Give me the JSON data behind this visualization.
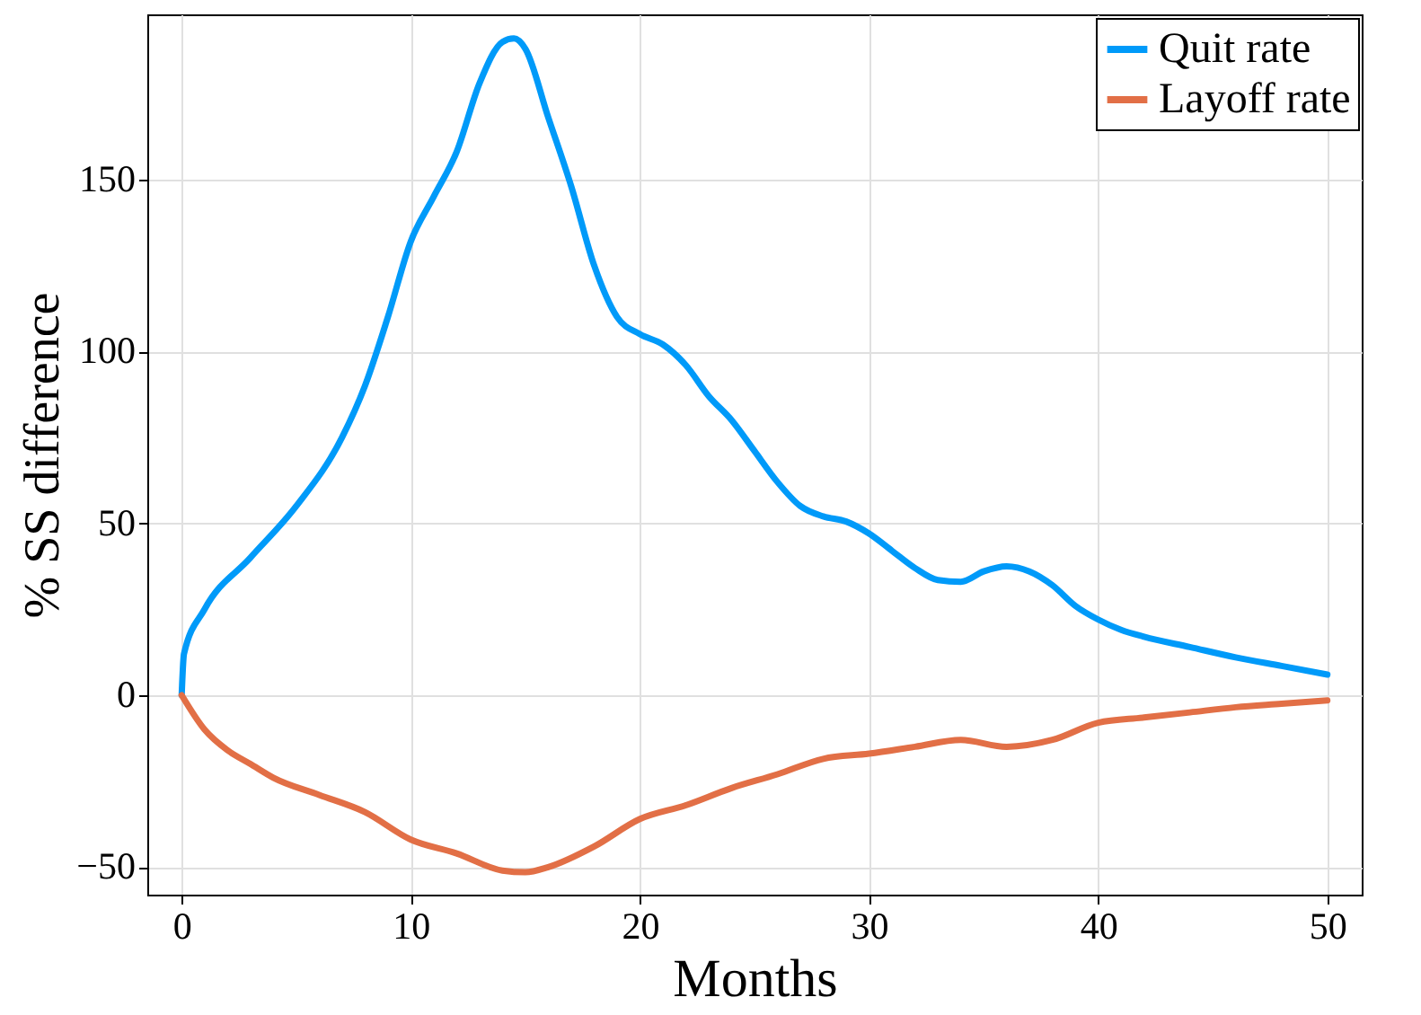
{
  "chart_data": {
    "type": "line",
    "xlabel": "Months",
    "ylabel": "% SS difference",
    "xlim": [
      -1.5,
      51.5
    ],
    "ylim": [
      -58,
      198
    ],
    "xticks": [
      0,
      10,
      20,
      30,
      40,
      50
    ],
    "yticks": [
      -50,
      0,
      50,
      100,
      150
    ],
    "grid": true,
    "legend": "top right",
    "line_style": "solid",
    "marker": "none",
    "series": [
      {
        "name": "Quit rate",
        "color": "#009af9",
        "x": [
          0,
          0.1,
          1,
          3,
          5,
          7,
          8,
          9,
          10,
          11,
          12,
          13,
          14,
          14.5,
          15,
          16,
          17,
          18,
          19,
          20,
          21,
          22,
          23,
          24,
          25,
          26,
          27,
          28,
          29,
          30,
          31,
          32,
          33,
          34,
          35,
          36,
          37,
          38,
          39,
          40,
          41,
          42,
          44,
          46,
          48,
          50
        ],
        "values": [
          0,
          12,
          25,
          40,
          55,
          75,
          90,
          110,
          132,
          145,
          158,
          178,
          190,
          191,
          188,
          168,
          148,
          125,
          110,
          105,
          102,
          96,
          87,
          80,
          71,
          62,
          55,
          52,
          50.5,
          47,
          42,
          37,
          33.5,
          33,
          36,
          37.5,
          36,
          32,
          26,
          22,
          19,
          17,
          14,
          11,
          8.5,
          6
        ]
      },
      {
        "name": "Layoff rate",
        "color": "#e26f46",
        "x": [
          0,
          1,
          2,
          3,
          4,
          6,
          8,
          10,
          12,
          14,
          15,
          16,
          18,
          20,
          22,
          24,
          26,
          28,
          30,
          32,
          34,
          36,
          38,
          40,
          42,
          44,
          46,
          48,
          50
        ],
        "values": [
          0,
          -10,
          -16,
          -20,
          -24,
          -29,
          -34,
          -42,
          -46,
          -51,
          -51.5,
          -50,
          -44,
          -36,
          -32,
          -27,
          -23,
          -18.5,
          -17,
          -15,
          -13,
          -15,
          -13,
          -8,
          -6.5,
          -5,
          -3.5,
          -2.5,
          -1.5
        ]
      }
    ]
  }
}
